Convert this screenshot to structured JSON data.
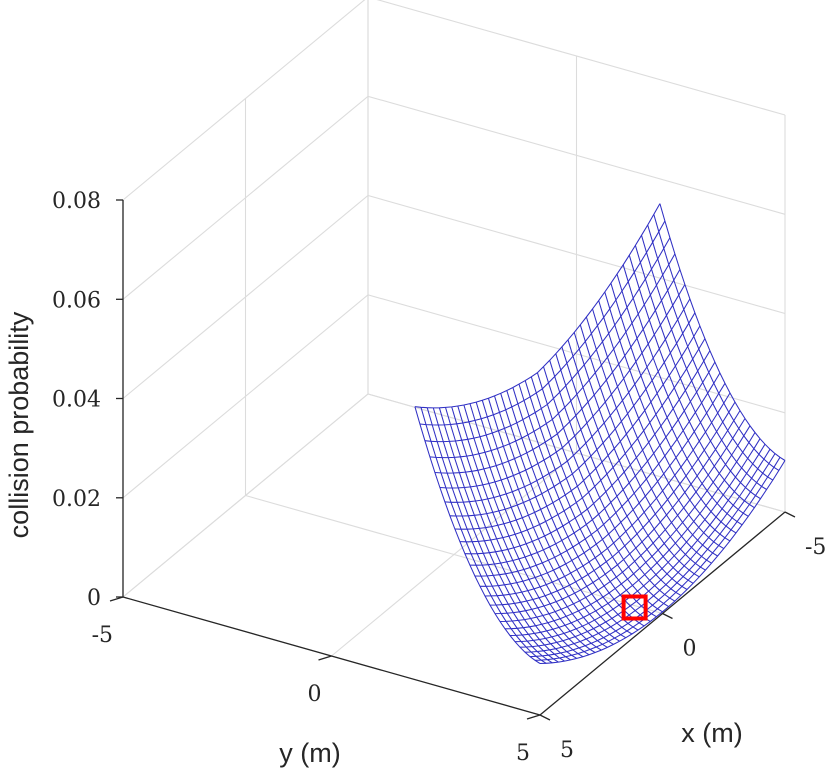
{
  "chart_data": {
    "type": "surface",
    "xlabel": "x (m)",
    "ylabel": "y (m)",
    "zlabel": "collision probability",
    "xlim": [
      -5,
      5
    ],
    "ylim": [
      -5,
      5
    ],
    "zlim": [
      0,
      0.08
    ],
    "x_ticks": [
      {
        "value": -5,
        "label": "-5"
      },
      {
        "value": 0,
        "label": "0"
      },
      {
        "value": 5,
        "label": "5"
      }
    ],
    "y_ticks": [
      {
        "value": -5,
        "label": "-5"
      },
      {
        "value": 0,
        "label": "0"
      },
      {
        "value": 5,
        "label": "5"
      }
    ],
    "z_ticks": [
      {
        "value": 0,
        "label": "0"
      },
      {
        "value": 0.02,
        "label": "0.02"
      },
      {
        "value": 0.04,
        "label": "0.04"
      },
      {
        "value": 0.06,
        "label": "0.06"
      },
      {
        "value": 0.08,
        "label": "0.08"
      }
    ],
    "surface": {
      "y_range": [
        2.0,
        5.0
      ],
      "grid_n_y": 26,
      "x_range": [
        -5,
        5
      ],
      "grid_n_x": 41,
      "description_points": [
        {
          "x": 0,
          "y": 5.0,
          "z": 0.0
        },
        {
          "x": 0,
          "y": 2.0,
          "z": 0.068
        },
        {
          "x": -5,
          "y": 5.0,
          "z": 0.01
        },
        {
          "x": -5,
          "y": 2.0,
          "z": 0.079
        }
      ]
    },
    "marker": {
      "x": 0.8,
      "y": 4.8,
      "z": 0.004,
      "color": "#ff0000"
    },
    "grid": true,
    "mesh_color": "#3030c4"
  }
}
